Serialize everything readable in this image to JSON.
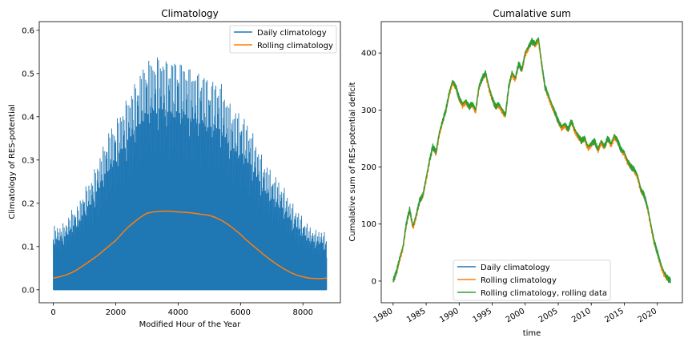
{
  "chart_data": [
    {
      "type": "line",
      "title": "Climatology",
      "xlabel": "Modified Hour of the Year",
      "ylabel": "Climatology of RES-potential",
      "xlim": [
        -450,
        9200
      ],
      "ylim": [
        -0.03,
        0.62
      ],
      "xticks": [
        0,
        2000,
        4000,
        6000,
        8000
      ],
      "xtick_labels": [
        "0",
        "2000",
        "4000",
        "6000",
        "8000"
      ],
      "yticks": [
        0.0,
        0.1,
        0.2,
        0.3,
        0.4,
        0.5,
        0.6
      ],
      "ytick_labels": [
        "0.0",
        "0.1",
        "0.2",
        "0.3",
        "0.4",
        "0.5",
        "0.6"
      ],
      "grid": false,
      "legend_position": "top-right",
      "series": [
        {
          "name": "Daily climatology",
          "color": "#1f77b4",
          "style": "dense-oscillating-fill",
          "baseline": 0.0,
          "x": [
            0,
            200,
            400,
            600,
            800,
            1000,
            1200,
            1400,
            1600,
            1800,
            2000,
            2200,
            2400,
            2600,
            2800,
            3000,
            3200,
            3400,
            3600,
            3800,
            4000,
            4200,
            4400,
            4600,
            4800,
            5000,
            5200,
            5400,
            5600,
            5800,
            6000,
            6200,
            6400,
            6600,
            6800,
            7000,
            7200,
            7400,
            7600,
            7800,
            8000,
            8200,
            8400,
            8600,
            8760
          ],
          "upper_envelope": [
            0.15,
            0.15,
            0.16,
            0.19,
            0.2,
            0.24,
            0.26,
            0.3,
            0.34,
            0.38,
            0.4,
            0.43,
            0.46,
            0.49,
            0.52,
            0.55,
            0.55,
            0.56,
            0.55,
            0.55,
            0.55,
            0.54,
            0.53,
            0.52,
            0.52,
            0.5,
            0.5,
            0.49,
            0.45,
            0.43,
            0.42,
            0.4,
            0.37,
            0.33,
            0.3,
            0.28,
            0.26,
            0.24,
            0.21,
            0.19,
            0.17,
            0.15,
            0.14,
            0.14,
            0.13
          ]
        },
        {
          "name": "Rolling climatology",
          "color": "#ff7f0e",
          "x": [
            0,
            200,
            400,
            600,
            800,
            1000,
            1200,
            1400,
            1600,
            1800,
            2000,
            2200,
            2400,
            2600,
            2800,
            3000,
            3200,
            3400,
            3600,
            3800,
            4000,
            4200,
            4400,
            4600,
            4800,
            5000,
            5200,
            5400,
            5600,
            5800,
            6000,
            6200,
            6400,
            6600,
            6800,
            7000,
            7200,
            7400,
            7600,
            7800,
            8000,
            8200,
            8400,
            8600,
            8760
          ],
          "y": [
            0.027,
            0.03,
            0.034,
            0.04,
            0.048,
            0.058,
            0.068,
            0.078,
            0.09,
            0.102,
            0.114,
            0.13,
            0.145,
            0.157,
            0.168,
            0.177,
            0.18,
            0.181,
            0.182,
            0.181,
            0.18,
            0.179,
            0.178,
            0.176,
            0.174,
            0.172,
            0.167,
            0.16,
            0.151,
            0.14,
            0.128,
            0.114,
            0.102,
            0.09,
            0.078,
            0.067,
            0.057,
            0.048,
            0.04,
            0.034,
            0.03,
            0.027,
            0.026,
            0.026,
            0.027
          ]
        }
      ]
    },
    {
      "type": "line",
      "title": "Cumalative sum",
      "xlabel": "time",
      "ylabel": "Cumalative sum of RES-potential deficit",
      "xlim": [
        1978.2,
        2023.8
      ],
      "ylim": [
        -38,
        455
      ],
      "xticks": [
        1980,
        1985,
        1990,
        1995,
        2000,
        2005,
        2010,
        2015,
        2020
      ],
      "xtick_labels": [
        "1980",
        "1985",
        "1990",
        "1995",
        "2000",
        "2005",
        "2010",
        "2015",
        "2020"
      ],
      "yticks": [
        0,
        100,
        200,
        300,
        400
      ],
      "ytick_labels": [
        "0",
        "100",
        "200",
        "300",
        "400"
      ],
      "grid": false,
      "legend_position": "bottom-center",
      "series": [
        {
          "name": "Daily climatology",
          "color": "#1f77b4",
          "x": [
            1980,
            1980.5,
            1981,
            1981.5,
            1982,
            1982.5,
            1983,
            1983.5,
            1984,
            1984.5,
            1985,
            1985.5,
            1986,
            1986.5,
            1987,
            1987.5,
            1988,
            1988.5,
            1989,
            1989.5,
            1990,
            1990.5,
            1991,
            1991.5,
            1992,
            1992.5,
            1993,
            1993.5,
            1994,
            1994.5,
            1995,
            1995.5,
            1996,
            1996.5,
            1997,
            1997.5,
            1998,
            1998.5,
            1999,
            1999.5,
            2000,
            2000.5,
            2001,
            2001.5,
            2002,
            2002.5,
            2003,
            2003.5,
            2004,
            2004.5,
            2005,
            2005.5,
            2006,
            2006.5,
            2007,
            2007.5,
            2008,
            2008.5,
            2009,
            2009.5,
            2010,
            2010.5,
            2011,
            2011.5,
            2012,
            2012.5,
            2013,
            2013.5,
            2014,
            2014.5,
            2015,
            2015.5,
            2016,
            2016.5,
            2017,
            2017.5,
            2018,
            2018.5,
            2019,
            2019.5,
            2020,
            2020.5,
            2021,
            2021.5,
            2022
          ],
          "y": [
            0,
            15,
            40,
            60,
            100,
            125,
            95,
            115,
            140,
            150,
            180,
            210,
            235,
            225,
            260,
            280,
            300,
            330,
            350,
            340,
            320,
            310,
            315,
            305,
            310,
            300,
            340,
            355,
            365,
            340,
            320,
            305,
            310,
            300,
            290,
            340,
            365,
            355,
            380,
            370,
            400,
            410,
            420,
            415,
            425,
            380,
            340,
            325,
            310,
            295,
            280,
            270,
            275,
            265,
            280,
            265,
            255,
            245,
            250,
            235,
            240,
            245,
            230,
            245,
            235,
            250,
            240,
            255,
            245,
            230,
            225,
            210,
            200,
            195,
            185,
            160,
            150,
            130,
            100,
            70,
            50,
            30,
            15,
            5,
            0
          ]
        },
        {
          "name": "Rolling climatology",
          "color": "#ff7f0e",
          "x": [
            1980,
            1980.5,
            1981,
            1981.5,
            1982,
            1982.5,
            1983,
            1983.5,
            1984,
            1984.5,
            1985,
            1985.5,
            1986,
            1986.5,
            1987,
            1987.5,
            1988,
            1988.5,
            1989,
            1989.5,
            1990,
            1990.5,
            1991,
            1991.5,
            1992,
            1992.5,
            1993,
            1993.5,
            1994,
            1994.5,
            1995,
            1995.5,
            1996,
            1996.5,
            1997,
            1997.5,
            1998,
            1998.5,
            1999,
            1999.5,
            2000,
            2000.5,
            2001,
            2001.5,
            2002,
            2002.5,
            2003,
            2003.5,
            2004,
            2004.5,
            2005,
            2005.5,
            2006,
            2006.5,
            2007,
            2007.5,
            2008,
            2008.5,
            2009,
            2009.5,
            2010,
            2010.5,
            2011,
            2011.5,
            2012,
            2012.5,
            2013,
            2013.5,
            2014,
            2014.5,
            2015,
            2015.5,
            2016,
            2016.5,
            2017,
            2017.5,
            2018,
            2018.5,
            2019,
            2019.5,
            2020,
            2020.5,
            2021,
            2021.5,
            2022
          ],
          "y": [
            -2,
            13,
            38,
            58,
            98,
            123,
            93,
            113,
            138,
            148,
            178,
            208,
            233,
            223,
            258,
            278,
            298,
            328,
            348,
            338,
            318,
            308,
            313,
            303,
            308,
            298,
            338,
            353,
            363,
            338,
            318,
            303,
            308,
            298,
            288,
            338,
            363,
            353,
            378,
            368,
            398,
            408,
            418,
            413,
            423,
            378,
            338,
            323,
            308,
            293,
            278,
            268,
            273,
            263,
            278,
            263,
            253,
            243,
            248,
            233,
            238,
            243,
            228,
            243,
            233,
            248,
            238,
            253,
            243,
            228,
            223,
            208,
            198,
            193,
            183,
            158,
            148,
            128,
            98,
            68,
            48,
            28,
            13,
            3,
            -2
          ]
        },
        {
          "name": "Rolling climatology, rolling data",
          "color": "#2ca02c",
          "x": [
            1980,
            1980.5,
            1981,
            1981.5,
            1982,
            1982.5,
            1983,
            1983.5,
            1984,
            1984.5,
            1985,
            1985.5,
            1986,
            1986.5,
            1987,
            1987.5,
            1988,
            1988.5,
            1989,
            1989.5,
            1990,
            1990.5,
            1991,
            1991.5,
            1992,
            1992.5,
            1993,
            1993.5,
            1994,
            1994.5,
            1995,
            1995.5,
            1996,
            1996.5,
            1997,
            1997.5,
            1998,
            1998.5,
            1999,
            1999.5,
            2000,
            2000.5,
            2001,
            2001.5,
            2002,
            2002.5,
            2003,
            2003.5,
            2004,
            2004.5,
            2005,
            2005.5,
            2006,
            2006.5,
            2007,
            2007.5,
            2008,
            2008.5,
            2009,
            2009.5,
            2010,
            2010.5,
            2011,
            2011.5,
            2012,
            2012.5,
            2013,
            2013.5,
            2014,
            2014.5,
            2015,
            2015.5,
            2016,
            2016.5,
            2017,
            2017.5,
            2018,
            2018.5,
            2019,
            2019.5,
            2020,
            2020.5,
            2021,
            2021.5,
            2022
          ],
          "y": [
            1,
            16,
            41,
            61,
            101,
            126,
            96,
            116,
            141,
            151,
            181,
            211,
            236,
            226,
            261,
            281,
            301,
            331,
            351,
            341,
            321,
            311,
            316,
            306,
            311,
            301,
            341,
            356,
            366,
            341,
            321,
            306,
            311,
            301,
            291,
            341,
            366,
            356,
            381,
            371,
            401,
            411,
            421,
            416,
            426,
            381,
            341,
            326,
            311,
            296,
            281,
            271,
            276,
            266,
            281,
            266,
            256,
            246,
            251,
            236,
            241,
            246,
            231,
            246,
            236,
            251,
            241,
            256,
            246,
            231,
            226,
            211,
            201,
            196,
            186,
            161,
            151,
            131,
            101,
            71,
            51,
            31,
            16,
            6,
            1
          ]
        }
      ]
    }
  ]
}
